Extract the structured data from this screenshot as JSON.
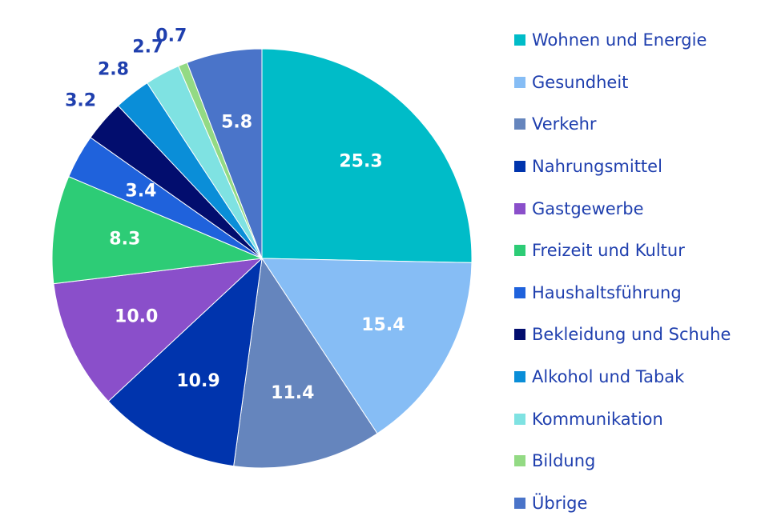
{
  "chart_data": {
    "type": "pie",
    "title": "",
    "categories": [
      "Wohnen und Energie",
      "Gesundheit",
      "Verkehr",
      "Nahrungsmittel",
      "Gastgewerbe",
      "Freizeit und Kultur",
      "Haushaltsführung",
      "Bekleidung und Schuhe",
      "Alkohol und Tabak",
      "Kommunikation",
      "Bildung",
      "Übrige"
    ],
    "values": [
      25.3,
      15.4,
      11.4,
      10.9,
      10.0,
      8.3,
      3.4,
      3.2,
      2.8,
      2.7,
      0.7,
      5.8
    ],
    "labels": [
      "25.3",
      "15.4",
      "11.4",
      "10.9",
      "10.0",
      "8.3",
      "3.4",
      "3.2",
      "2.8",
      "2.7",
      "0.7",
      "5.8"
    ],
    "colors": [
      "#00bcc8",
      "#86bdf5",
      "#6585bd",
      "#0034ad",
      "#8a4fca",
      "#2dcc76",
      "#1f62dc",
      "#020d6e",
      "#0a8ed8",
      "#7fe2e2",
      "#93da84",
      "#4a74c9"
    ],
    "label_colors": {
      "inside": "#ffffff",
      "outside": "#1f3fae"
    },
    "start_angle": "12 o'clock",
    "direction": "clockwise",
    "legend_position": "right"
  }
}
